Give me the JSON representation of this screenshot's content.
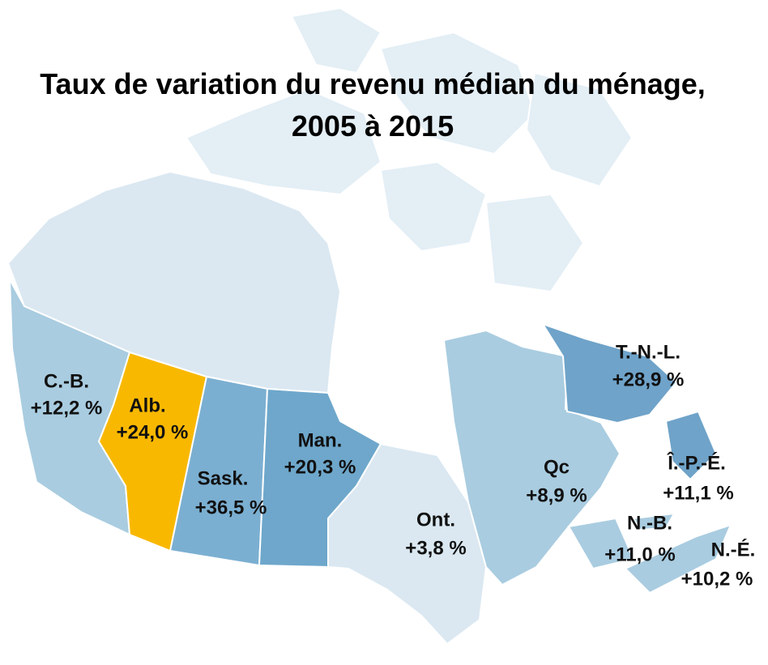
{
  "title": "Taux de variation du revenu médian du ménage, 2005 à 2015",
  "regions": [
    {
      "name": "C.-B.",
      "value": "+12,2 %"
    },
    {
      "name": "Alb.",
      "value": "+24,0 %"
    },
    {
      "name": "Sask.",
      "value": "+36,5 %"
    },
    {
      "name": "Man.",
      "value": "+20,3 %"
    },
    {
      "name": "Ont.",
      "value": "+3,8 %"
    },
    {
      "name": "Qc",
      "value": "+8,9 %"
    },
    {
      "name": "T.-N.-L.",
      "value": "+28,9 %"
    },
    {
      "name": "Î.-P.-É.",
      "value": "+11,1 %"
    },
    {
      "name": "N.-B.",
      "value": "+11,0 %"
    },
    {
      "name": "N.-É.",
      "value": "+10,2 %"
    }
  ]
}
